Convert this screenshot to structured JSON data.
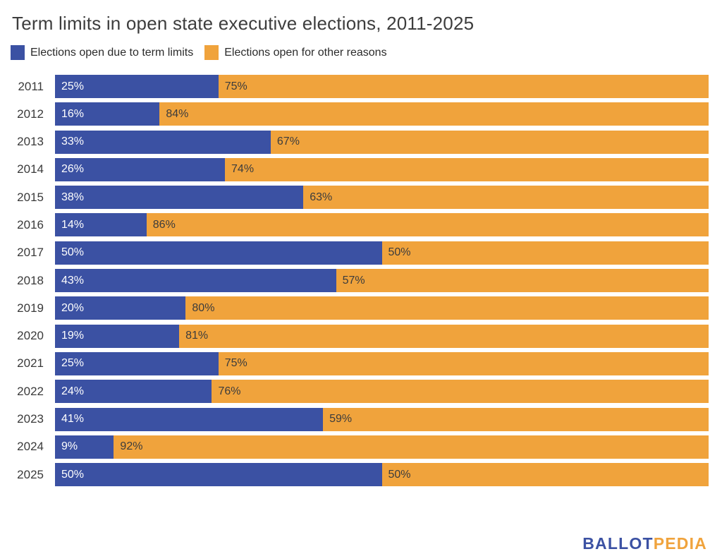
{
  "title": "Term limits in open state executive elections, 2011-2025",
  "colors": {
    "blue": "#3b51a3",
    "orange": "#f0a33c",
    "title_text": "#3d3d3d",
    "label_on_blue": "#ffffff",
    "label_on_orange": "#3c3c3c"
  },
  "legend": {
    "items": [
      {
        "label": "Elections open due to term limits",
        "color": "#3b51a3"
      },
      {
        "label": "Elections open for other reasons",
        "color": "#f0a33c"
      }
    ]
  },
  "logo": {
    "part1": "BALLOT",
    "part2": "PEDIA"
  },
  "chart_data": {
    "type": "bar",
    "orientation": "horizontal-stacked",
    "title": "Term limits in open state executive elections, 2011-2025",
    "value_suffix": "%",
    "xlim": [
      0,
      100
    ],
    "grid": false,
    "legend_position": "top",
    "categories": [
      "2011",
      "2012",
      "2013",
      "2014",
      "2015",
      "2016",
      "2017",
      "2018",
      "2019",
      "2020",
      "2021",
      "2022",
      "2023",
      "2024",
      "2025"
    ],
    "series": [
      {
        "name": "Elections open due to term limits",
        "color": "#3b51a3",
        "values": [
          25,
          16,
          33,
          26,
          38,
          14,
          50,
          43,
          20,
          19,
          25,
          24,
          41,
          9,
          50
        ]
      },
      {
        "name": "Elections open for other reasons",
        "color": "#f0a33c",
        "values": [
          75,
          84,
          67,
          74,
          63,
          86,
          50,
          57,
          80,
          81,
          75,
          76,
          59,
          92,
          50
        ]
      }
    ]
  }
}
